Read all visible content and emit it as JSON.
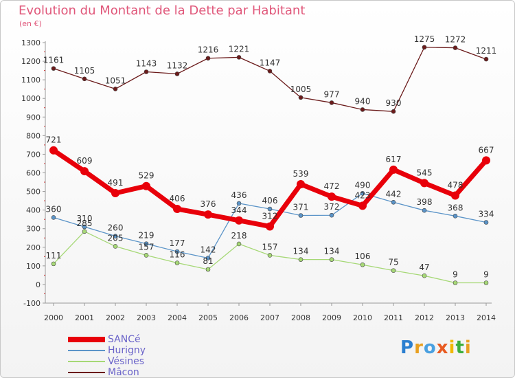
{
  "title": "Evolution du Montant de la Dette par Habitant",
  "unit": "(en €)",
  "logo": {
    "text": "Proxiti",
    "colors": [
      "#2b7fd0",
      "#e8a020",
      "#4aa0e0",
      "#e85a20",
      "#f0b800",
      "#3cae3c",
      "#e8a020"
    ]
  },
  "chart_data": {
    "type": "line",
    "x": [
      2000,
      2001,
      2002,
      2003,
      2004,
      2005,
      2006,
      2007,
      2008,
      2009,
      2010,
      2011,
      2012,
      2013,
      2014
    ],
    "ylim": [
      -100,
      1300
    ],
    "yticks": [
      -100,
      0,
      100,
      200,
      300,
      400,
      500,
      600,
      700,
      800,
      900,
      1000,
      1100,
      1200,
      1300
    ],
    "grid": false,
    "legend": "bottom-left",
    "series": [
      {
        "name": "Mâcon",
        "color": "#6b1b1b",
        "width": 1.3,
        "marker": 3,
        "values": [
          1161,
          1105,
          1051,
          1143,
          1132,
          1216,
          1221,
          1147,
          1005,
          977,
          940,
          930,
          1275,
          1272,
          1211
        ]
      },
      {
        "name": "Hurigny",
        "color": "#5b94c8",
        "width": 1.3,
        "marker": 3,
        "values": [
          360,
          310,
          260,
          219,
          177,
          142,
          436,
          406,
          371,
          372,
          490,
          442,
          398,
          368,
          334
        ]
      },
      {
        "name": "Vésines",
        "color": "#a6d876",
        "width": 1.3,
        "marker": 3,
        "values": [
          111,
          285,
          205,
          157,
          116,
          81,
          218,
          157,
          134,
          134,
          106,
          75,
          47,
          9,
          9
        ]
      },
      {
        "name": "SANCé",
        "color": "#e8000a",
        "width": 7,
        "marker": 6,
        "values": [
          721,
          609,
          491,
          529,
          406,
          376,
          344,
          312,
          539,
          472,
          423,
          617,
          545,
          478,
          667
        ]
      }
    ],
    "labels": {
      "Mâcon": [
        "1161",
        "1105",
        "1051",
        "1143",
        "1132",
        "1216",
        "1221",
        "1147",
        "1005",
        "977",
        "940",
        "930",
        "1275",
        "1272",
        "1211"
      ],
      "Hurigny": [
        "360",
        "310",
        "260",
        "219",
        "177",
        "142",
        "436",
        "406",
        "371",
        "372",
        "490",
        "442",
        "398",
        "368",
        "334"
      ],
      "Vésines": [
        "111",
        "285",
        "205",
        "157",
        "116",
        "81",
        "218",
        "157",
        "134",
        "134",
        "106",
        "75",
        "47",
        "9",
        "9"
      ],
      "SANCé": [
        "721",
        "609",
        "491",
        "529",
        "406",
        "376",
        "344",
        "312",
        "539",
        "472",
        "423",
        "617",
        "545",
        "478",
        "667"
      ]
    },
    "legend_order": [
      "SANCé",
      "Hurigny",
      "Vésines",
      "Mâcon"
    ]
  }
}
